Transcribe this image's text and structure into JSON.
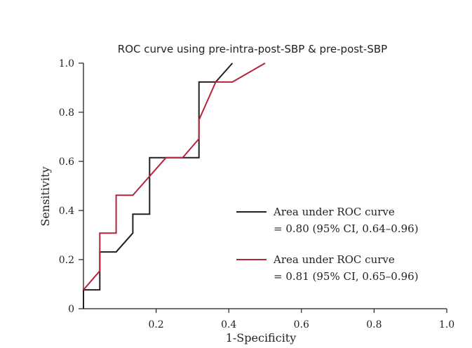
{
  "chart_data": {
    "type": "line",
    "title": "ROC curve using pre-intra-post-SBP & pre-post-SBP",
    "xlabel": "1-Specificity",
    "ylabel": "Sensitivity",
    "xlim": [
      0,
      1
    ],
    "ylim": [
      0,
      1
    ],
    "x_ticks": [
      0.2,
      0.4,
      0.6,
      0.8,
      1.0
    ],
    "x_tick_labels": [
      "0.2",
      "0.4",
      "0.6",
      "0.8",
      "1.0"
    ],
    "y_ticks": [
      0,
      0.2,
      0.4,
      0.6,
      0.8,
      1.0
    ],
    "y_tick_labels": [
      "0",
      "0.2",
      "0.4",
      "0.6",
      "0.8",
      "1.0"
    ],
    "grid": false,
    "legend_position": "lower-right",
    "series": [
      {
        "name": "pre-intra-post-SBP",
        "color": "#231f20",
        "legend_line1": "Area under ROC curve",
        "legend_line2": "= 0.80 (95% CI, 0.64–0.96)",
        "x": [
          0.0,
          0.0,
          0.045,
          0.045,
          0.09,
          0.136,
          0.136,
          0.182,
          0.182,
          0.318,
          0.318,
          0.364,
          0.41
        ],
        "y": [
          0.0,
          0.077,
          0.077,
          0.231,
          0.231,
          0.308,
          0.385,
          0.385,
          0.615,
          0.615,
          0.923,
          0.923,
          1.0
        ]
      },
      {
        "name": "pre-post-SBP",
        "color": "#b5243c",
        "legend_line1": "Area under ROC curve",
        "legend_line2": "= 0.81 (95% CI, 0.65–0.96)",
        "x": [
          0.0,
          0.045,
          0.045,
          0.09,
          0.09,
          0.136,
          0.227,
          0.273,
          0.318,
          0.318,
          0.364,
          0.41,
          0.5
        ],
        "y": [
          0.077,
          0.154,
          0.308,
          0.308,
          0.462,
          0.462,
          0.615,
          0.615,
          0.692,
          0.769,
          0.923,
          0.923,
          1.0
        ]
      }
    ]
  }
}
